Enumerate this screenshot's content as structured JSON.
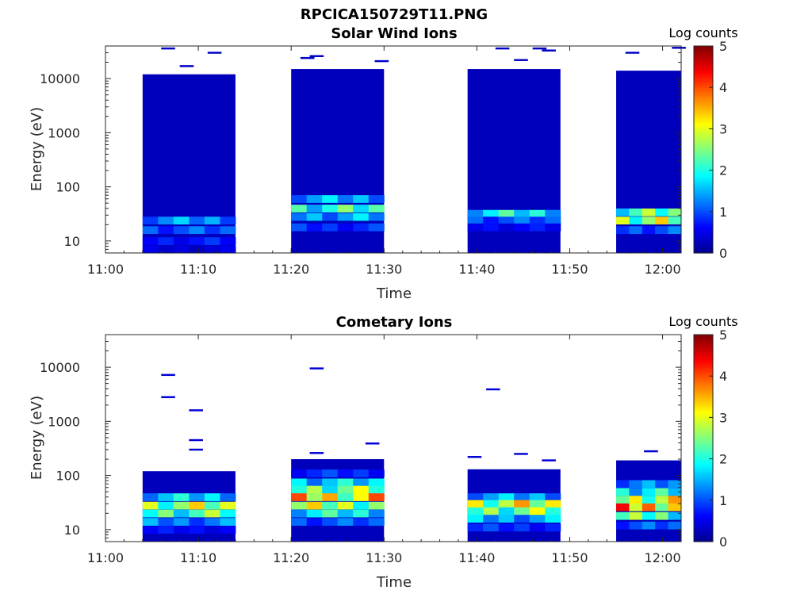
{
  "figure_title": "RPCICA150729T11.PNG",
  "colors": {
    "axis": "#262626",
    "colormap": [
      "#00008f",
      "#0000ff",
      "#0080ff",
      "#00ffff",
      "#80ff80",
      "#ffff00",
      "#ff8000",
      "#ff0000",
      "#800000"
    ]
  },
  "chart_data": [
    {
      "type": "heatmap",
      "title": "Solar Wind Ions",
      "xlabel": "Time",
      "ylabel": "Energy (eV)",
      "yscale": "log",
      "ylim": [
        6,
        40000
      ],
      "xlim": [
        "11:00",
        "12:02"
      ],
      "x_ticks": [
        "11:00",
        "11:10",
        "11:20",
        "11:30",
        "11:40",
        "11:50",
        "12:00"
      ],
      "y_ticks": [
        "10",
        "100",
        "1000",
        "10000"
      ],
      "colorbar": {
        "label": "Log counts",
        "range": [
          0,
          5
        ],
        "ticks": [
          "0",
          "1",
          "2",
          "3",
          "4",
          "5"
        ]
      },
      "intervals": [
        {
          "start": "11:04",
          "end": "11:14",
          "sample_minutes": 1.54,
          "top_energy": 12000,
          "bottom_energy": 6,
          "low_band": [
            [
              24,
              1.3
            ],
            [
              16,
              1.0
            ],
            [
              10,
              0.7
            ],
            [
              7,
              0.4
            ]
          ]
        },
        {
          "start": "11:20",
          "end": "11:30",
          "sample_minutes": 1.54,
          "top_energy": 15000,
          "bottom_energy": 6,
          "low_band": [
            [
              60,
              1.4
            ],
            [
              40,
              2.0
            ],
            [
              28,
              1.4
            ],
            [
              18,
              0.8
            ]
          ]
        },
        {
          "start": "11:39",
          "end": "11:49",
          "sample_minutes": 1.54,
          "top_energy": 15000,
          "bottom_energy": 6,
          "low_band": [
            [
              32,
              1.8
            ],
            [
              24,
              1.0
            ],
            [
              18,
              0.6
            ]
          ]
        },
        {
          "start": "11:55",
          "end": "12:02",
          "sample_minutes": 1.54,
          "top_energy": 14000,
          "bottom_energy": 6,
          "low_band": [
            [
              34,
              2.2
            ],
            [
              24,
              2.6
            ],
            [
              16,
              1.0
            ]
          ]
        }
      ],
      "sparse_bins": [
        {
          "time": "11:06",
          "energy": 36000,
          "value": 0.3
        },
        {
          "time": "11:08",
          "energy": 17000,
          "value": 0.3
        },
        {
          "time": "11:11",
          "energy": 30000,
          "value": 0.3
        },
        {
          "time": "11:21",
          "energy": 24000,
          "value": 0.3
        },
        {
          "time": "11:22",
          "energy": 26000,
          "value": 0.3
        },
        {
          "time": "11:29",
          "energy": 21000,
          "value": 0.3
        },
        {
          "time": "11:42",
          "energy": 36000,
          "value": 0.3
        },
        {
          "time": "11:44",
          "energy": 22000,
          "value": 0.3
        },
        {
          "time": "11:46",
          "energy": 36000,
          "value": 0.3
        },
        {
          "time": "11:47",
          "energy": 33000,
          "value": 0.3
        },
        {
          "time": "11:56",
          "energy": 30000,
          "value": 0.3
        },
        {
          "time": "12:01",
          "energy": 37000,
          "value": 0.3
        }
      ]
    },
    {
      "type": "heatmap",
      "title": "Cometary Ions",
      "xlabel": "Time",
      "ylabel": "Energy (eV)",
      "yscale": "log",
      "ylim": [
        6,
        40000
      ],
      "xlim": [
        "11:00",
        "12:02"
      ],
      "x_ticks": [
        "11:00",
        "11:10",
        "11:20",
        "11:30",
        "11:40",
        "11:50",
        "12:00"
      ],
      "y_ticks": [
        "10",
        "100",
        "1000",
        "10000"
      ],
      "colorbar": {
        "label": "Log counts",
        "range": [
          0,
          5
        ],
        "ticks": [
          "0",
          "1",
          "2",
          "3",
          "4",
          "5"
        ]
      },
      "intervals": [
        {
          "start": "11:04",
          "end": "11:14",
          "sample_minutes": 1.54,
          "top_energy": 120,
          "bottom_energy": 6,
          "low_band": [
            [
              40,
              1.6
            ],
            [
              28,
              2.6
            ],
            [
              20,
              2.2
            ],
            [
              14,
              1.2
            ],
            [
              10,
              0.6
            ]
          ]
        },
        {
          "start": "11:20",
          "end": "11:30",
          "sample_minutes": 1.54,
          "top_energy": 200,
          "bottom_energy": 6,
          "low_band": [
            [
              110,
              0.8
            ],
            [
              75,
              1.6
            ],
            [
              55,
              2.4
            ],
            [
              40,
              3.1
            ],
            [
              28,
              2.6
            ],
            [
              20,
              1.8
            ],
            [
              14,
              1.0
            ]
          ]
        },
        {
          "start": "11:39",
          "end": "11:49",
          "sample_minutes": 1.54,
          "top_energy": 130,
          "bottom_energy": 6,
          "low_band": [
            [
              40,
              1.4
            ],
            [
              30,
              2.8
            ],
            [
              22,
              2.4
            ],
            [
              16,
              1.4
            ],
            [
              11,
              0.8
            ]
          ]
        },
        {
          "start": "11:55",
          "end": "12:02",
          "sample_minutes": 1.54,
          "top_energy": 190,
          "bottom_energy": 6,
          "low_band": [
            [
              70,
              1.2
            ],
            [
              50,
              1.8
            ],
            [
              36,
              2.8
            ],
            [
              26,
              3.4
            ],
            [
              18,
              2.2
            ],
            [
              12,
              1.0
            ]
          ]
        }
      ],
      "sparse_bins": [
        {
          "time": "11:06",
          "energy": 7200,
          "value": 0.4
        },
        {
          "time": "11:06",
          "energy": 2800,
          "value": 0.4
        },
        {
          "time": "11:09",
          "energy": 1600,
          "value": 0.4
        },
        {
          "time": "11:09",
          "energy": 450,
          "value": 0.4
        },
        {
          "time": "11:09",
          "energy": 300,
          "value": 0.4
        },
        {
          "time": "11:22",
          "energy": 9500,
          "value": 0.4
        },
        {
          "time": "11:22",
          "energy": 260,
          "value": 0.4
        },
        {
          "time": "11:28",
          "energy": 390,
          "value": 0.4
        },
        {
          "time": "11:41",
          "energy": 3900,
          "value": 0.4
        },
        {
          "time": "11:39",
          "energy": 220,
          "value": 0.4
        },
        {
          "time": "11:44",
          "energy": 250,
          "value": 0.4
        },
        {
          "time": "11:47",
          "energy": 190,
          "value": 0.4
        },
        {
          "time": "11:58",
          "energy": 280,
          "value": 0.4
        }
      ]
    }
  ]
}
